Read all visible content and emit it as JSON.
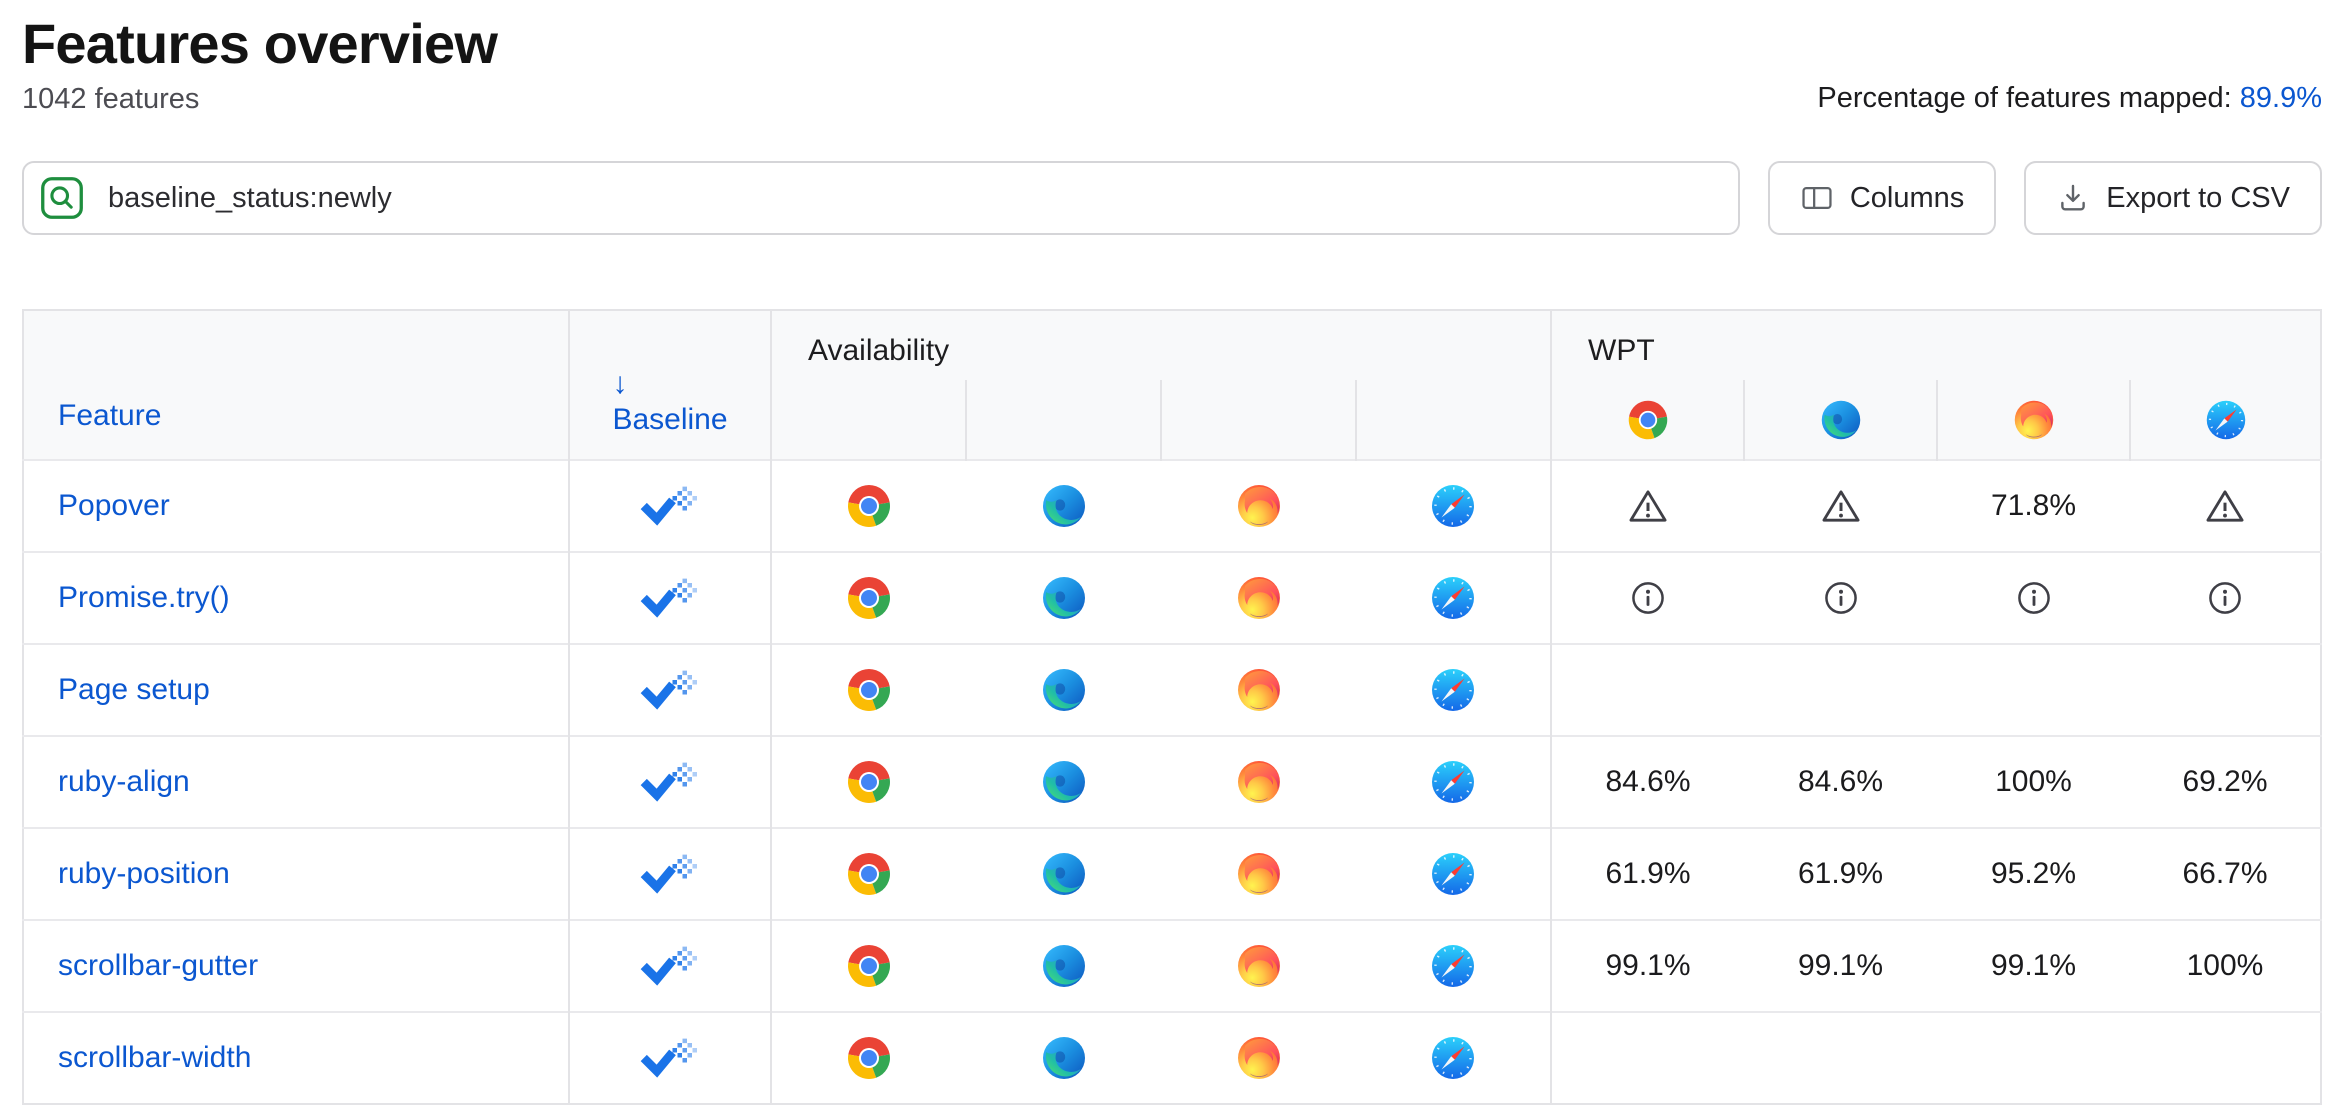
{
  "colors": {
    "link_blue": "#0b57d0",
    "baseline_newly_blue": "#1a73e8",
    "search_icon_green": "#1e8e3e",
    "table_header_bg": "#f8f9fa",
    "table_border": "#e3e3e6"
  },
  "icons": {
    "search": "magnifier-in-green-rounded-box",
    "columns": "column-layout-rectangle",
    "export": "download-arrow-into-tray",
    "baseline_newly": "blue-check-with-dotted-tail",
    "warning": "triangle-exclamation-outline",
    "info": "circle-i-outline",
    "browsers": [
      "chrome",
      "edge",
      "firefox",
      "safari"
    ]
  },
  "header": {
    "title": "Features overview",
    "feature_count": "1042 features",
    "mapped_label": "Percentage of features mapped: ",
    "mapped_value": "89.9%"
  },
  "toolbar": {
    "search_value": "baseline_status:newly",
    "columns_label": "Columns",
    "export_label": "Export to CSV"
  },
  "table": {
    "feature_header": "Feature",
    "baseline_sort_arrow": "↓",
    "baseline_header": "Baseline",
    "availability_header": "Availability",
    "wpt_header": "WPT",
    "wpt_browser_order": [
      "chrome",
      "edge",
      "firefox",
      "safari"
    ],
    "availability_browser_order": [
      "chrome",
      "edge",
      "firefox",
      "safari"
    ],
    "rows": [
      {
        "feature": "Popover",
        "baseline": "newly-available",
        "availability": [
          "chrome",
          "edge",
          "firefox",
          "safari"
        ],
        "wpt": [
          {
            "type": "warning"
          },
          {
            "type": "warning"
          },
          {
            "type": "percent",
            "value": "71.8%"
          },
          {
            "type": "warning"
          }
        ]
      },
      {
        "feature": "Promise.try()",
        "baseline": "newly-available",
        "availability": [
          "chrome",
          "edge",
          "firefox",
          "safari"
        ],
        "wpt": [
          {
            "type": "info"
          },
          {
            "type": "info"
          },
          {
            "type": "info"
          },
          {
            "type": "info"
          }
        ]
      },
      {
        "feature": "Page setup",
        "baseline": "newly-available",
        "availability": [
          "chrome",
          "edge",
          "firefox",
          "safari"
        ],
        "wpt": [
          {
            "type": "empty"
          },
          {
            "type": "empty"
          },
          {
            "type": "empty"
          },
          {
            "type": "empty"
          }
        ]
      },
      {
        "feature": "ruby-align",
        "baseline": "newly-available",
        "availability": [
          "chrome",
          "edge",
          "firefox",
          "safari"
        ],
        "wpt": [
          {
            "type": "percent",
            "value": "84.6%"
          },
          {
            "type": "percent",
            "value": "84.6%"
          },
          {
            "type": "percent",
            "value": "100%"
          },
          {
            "type": "percent",
            "value": "69.2%"
          }
        ]
      },
      {
        "feature": "ruby-position",
        "baseline": "newly-available",
        "availability": [
          "chrome",
          "edge",
          "firefox",
          "safari"
        ],
        "wpt": [
          {
            "type": "percent",
            "value": "61.9%"
          },
          {
            "type": "percent",
            "value": "61.9%"
          },
          {
            "type": "percent",
            "value": "95.2%"
          },
          {
            "type": "percent",
            "value": "66.7%"
          }
        ]
      },
      {
        "feature": "scrollbar-gutter",
        "baseline": "newly-available",
        "availability": [
          "chrome",
          "edge",
          "firefox",
          "safari"
        ],
        "wpt": [
          {
            "type": "percent",
            "value": "99.1%"
          },
          {
            "type": "percent",
            "value": "99.1%"
          },
          {
            "type": "percent",
            "value": "99.1%"
          },
          {
            "type": "percent",
            "value": "100%"
          }
        ]
      },
      {
        "feature": "scrollbar-width",
        "baseline": "newly-available",
        "availability": [
          "chrome",
          "edge",
          "firefox",
          "safari"
        ],
        "wpt": [
          {
            "type": "empty"
          },
          {
            "type": "empty"
          },
          {
            "type": "empty"
          },
          {
            "type": "empty"
          }
        ]
      }
    ]
  }
}
